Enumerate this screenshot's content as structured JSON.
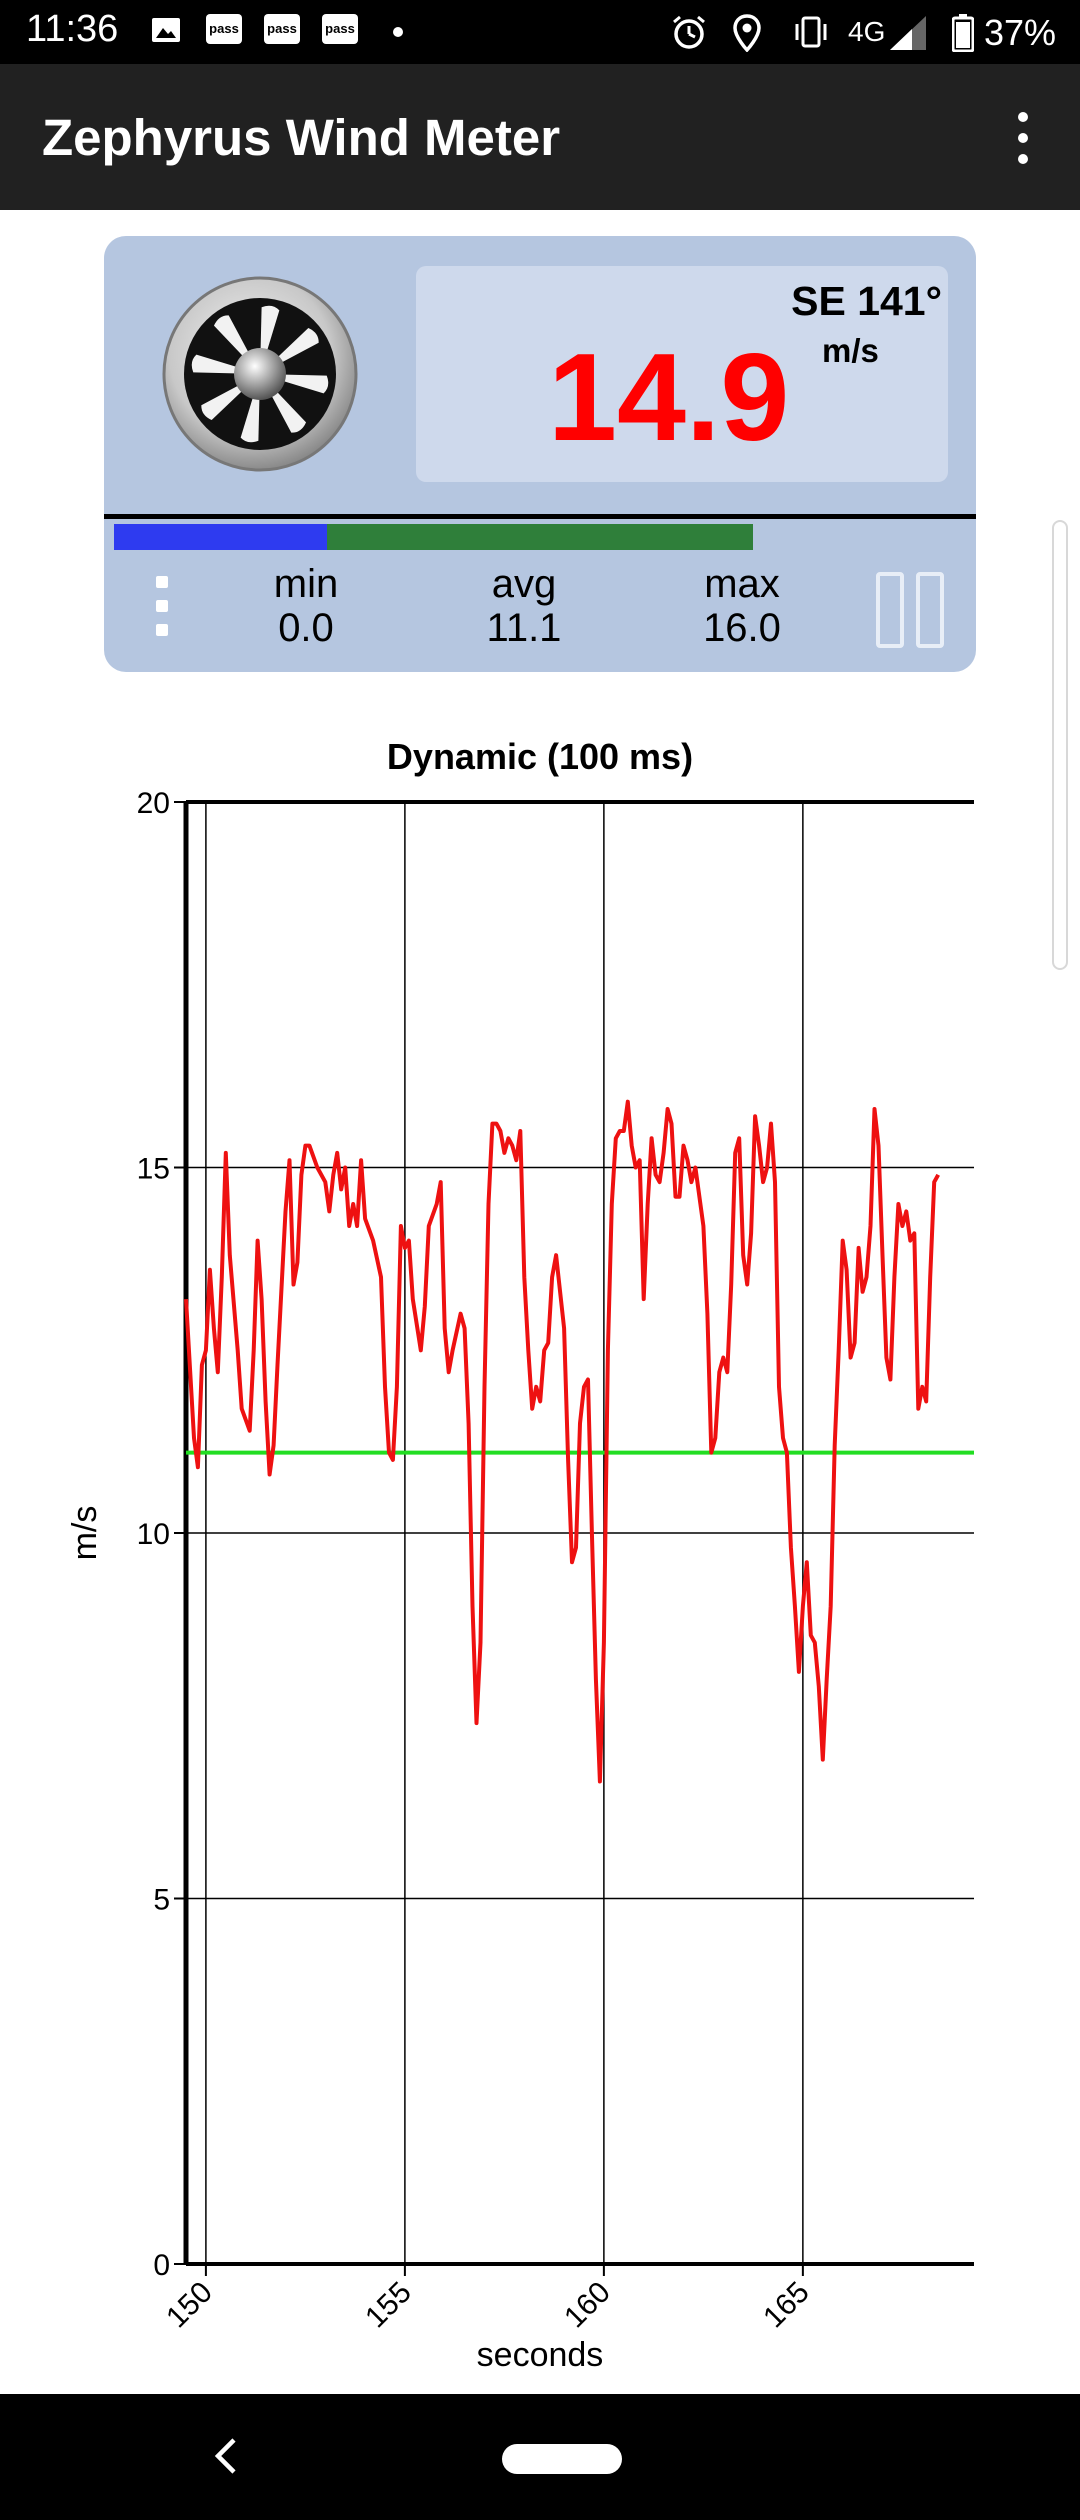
{
  "status_bar": {
    "time": "11:36",
    "notification_icons": [
      "gallery-icon",
      "pass-icon",
      "pass-icon",
      "pass-icon",
      "dot-icon"
    ],
    "pass_label": "pass",
    "system_icons": [
      "alarm-icon",
      "location-icon",
      "vibrate-icon",
      "signal-icon",
      "battery-icon"
    ],
    "network": "4G",
    "battery": "37%"
  },
  "app_bar": {
    "title": "Zephyrus Wind Meter",
    "menu_icon": "overflow-menu-icon"
  },
  "meter": {
    "direction": "SE 141°",
    "speed": "14.9",
    "unit": "m/s",
    "stats": [
      {
        "label": "min",
        "value": "0.0"
      },
      {
        "label": "avg",
        "value": "11.1"
      },
      {
        "label": "max",
        "value": "16.0"
      }
    ],
    "range_bar": {
      "blue_fraction": 0.25,
      "green_fraction": 0.5
    },
    "colors": {
      "speed": "#ff0000",
      "card": "#b5c6e0",
      "panel": "#ced9ec",
      "blue": "#2e3bf0",
      "green": "#2f7f3a"
    }
  },
  "chart_data": {
    "type": "line",
    "title": "Dynamic (100 ms)",
    "xlabel": "seconds",
    "ylabel": "m/s",
    "xlim": [
      149.5,
      169.3
    ],
    "ylim": [
      0,
      20
    ],
    "xticks": [
      150,
      155,
      160,
      165
    ],
    "yticks": [
      0,
      5,
      10,
      15,
      20
    ],
    "grid": true,
    "avg_line": {
      "value": 11.1,
      "color": "#22dd22"
    },
    "series": [
      {
        "color": "#ee1111",
        "points": [
          [
            149.5,
            13.2
          ],
          [
            149.7,
            11.3
          ],
          [
            149.8,
            10.9
          ],
          [
            149.9,
            12.3
          ],
          [
            150.0,
            12.5
          ],
          [
            150.1,
            13.6
          ],
          [
            150.2,
            12.8
          ],
          [
            150.3,
            12.2
          ],
          [
            150.4,
            13.5
          ],
          [
            150.5,
            15.2
          ],
          [
            150.6,
            13.8
          ],
          [
            150.8,
            12.5
          ],
          [
            150.9,
            11.7
          ],
          [
            151.1,
            11.4
          ],
          [
            151.2,
            12.5
          ],
          [
            151.3,
            14.0
          ],
          [
            151.4,
            13.2
          ],
          [
            151.5,
            11.8
          ],
          [
            151.6,
            10.8
          ],
          [
            151.7,
            11.2
          ],
          [
            151.8,
            12.3
          ],
          [
            152.0,
            14.4
          ],
          [
            152.1,
            15.1
          ],
          [
            152.2,
            13.4
          ],
          [
            152.3,
            13.7
          ],
          [
            152.4,
            14.9
          ],
          [
            152.5,
            15.3
          ],
          [
            152.6,
            15.3
          ],
          [
            152.8,
            15.0
          ],
          [
            153.0,
            14.8
          ],
          [
            153.1,
            14.4
          ],
          [
            153.2,
            14.9
          ],
          [
            153.3,
            15.2
          ],
          [
            153.4,
            14.7
          ],
          [
            153.5,
            15.0
          ],
          [
            153.6,
            14.2
          ],
          [
            153.7,
            14.5
          ],
          [
            153.8,
            14.2
          ],
          [
            153.9,
            15.1
          ],
          [
            154.0,
            14.3
          ],
          [
            154.2,
            14.0
          ],
          [
            154.4,
            13.5
          ],
          [
            154.5,
            12.0
          ],
          [
            154.6,
            11.1
          ],
          [
            154.7,
            11.0
          ],
          [
            154.8,
            12.0
          ],
          [
            154.9,
            14.2
          ],
          [
            155.0,
            13.9
          ],
          [
            155.1,
            14.0
          ],
          [
            155.2,
            13.2
          ],
          [
            155.4,
            12.5
          ],
          [
            155.5,
            13.1
          ],
          [
            155.6,
            14.2
          ],
          [
            155.8,
            14.5
          ],
          [
            155.9,
            14.8
          ],
          [
            156.0,
            12.8
          ],
          [
            156.1,
            12.2
          ],
          [
            156.2,
            12.5
          ],
          [
            156.4,
            13.0
          ],
          [
            156.5,
            12.8
          ],
          [
            156.6,
            11.5
          ],
          [
            156.7,
            9.0
          ],
          [
            156.8,
            7.4
          ],
          [
            156.9,
            8.5
          ],
          [
            157.0,
            12.0
          ],
          [
            157.1,
            14.5
          ],
          [
            157.2,
            15.6
          ],
          [
            157.3,
            15.6
          ],
          [
            157.4,
            15.5
          ],
          [
            157.5,
            15.2
          ],
          [
            157.6,
            15.4
          ],
          [
            157.7,
            15.3
          ],
          [
            157.8,
            15.1
          ],
          [
            157.9,
            15.5
          ],
          [
            158.0,
            13.5
          ],
          [
            158.1,
            12.5
          ],
          [
            158.2,
            11.7
          ],
          [
            158.3,
            12.0
          ],
          [
            158.4,
            11.8
          ],
          [
            158.5,
            12.5
          ],
          [
            158.6,
            12.6
          ],
          [
            158.7,
            13.5
          ],
          [
            158.8,
            13.8
          ],
          [
            158.9,
            13.3
          ],
          [
            159.0,
            12.8
          ],
          [
            159.1,
            11.0
          ],
          [
            159.2,
            9.6
          ],
          [
            159.3,
            9.8
          ],
          [
            159.4,
            11.5
          ],
          [
            159.5,
            12.0
          ],
          [
            159.6,
            12.1
          ],
          [
            159.7,
            10.0
          ],
          [
            159.8,
            8.0
          ],
          [
            159.9,
            6.6
          ],
          [
            160.0,
            8.5
          ],
          [
            160.1,
            12.5
          ],
          [
            160.2,
            14.5
          ],
          [
            160.3,
            15.4
          ],
          [
            160.4,
            15.5
          ],
          [
            160.5,
            15.5
          ],
          [
            160.6,
            15.9
          ],
          [
            160.7,
            15.3
          ],
          [
            160.8,
            15.0
          ],
          [
            160.9,
            15.1
          ],
          [
            161.0,
            13.2
          ],
          [
            161.1,
            14.5
          ],
          [
            161.2,
            15.4
          ],
          [
            161.3,
            14.9
          ],
          [
            161.4,
            14.8
          ],
          [
            161.5,
            15.2
          ],
          [
            161.6,
            15.8
          ],
          [
            161.7,
            15.6
          ],
          [
            161.8,
            14.6
          ],
          [
            161.9,
            14.6
          ],
          [
            162.0,
            15.3
          ],
          [
            162.1,
            15.1
          ],
          [
            162.2,
            14.8
          ],
          [
            162.3,
            15.0
          ],
          [
            162.5,
            14.2
          ],
          [
            162.6,
            13.0
          ],
          [
            162.7,
            11.1
          ],
          [
            162.8,
            11.3
          ],
          [
            162.9,
            12.2
          ],
          [
            163.0,
            12.4
          ],
          [
            163.1,
            12.2
          ],
          [
            163.2,
            13.4
          ],
          [
            163.3,
            15.2
          ],
          [
            163.4,
            15.4
          ],
          [
            163.5,
            13.8
          ],
          [
            163.6,
            13.4
          ],
          [
            163.7,
            14.1
          ],
          [
            163.8,
            15.7
          ],
          [
            163.9,
            15.3
          ],
          [
            164.0,
            14.8
          ],
          [
            164.1,
            15.0
          ],
          [
            164.2,
            15.6
          ],
          [
            164.3,
            14.8
          ],
          [
            164.4,
            12.0
          ],
          [
            164.5,
            11.3
          ],
          [
            164.6,
            11.1
          ],
          [
            164.7,
            9.8
          ],
          [
            164.8,
            9.0
          ],
          [
            164.9,
            8.1
          ],
          [
            165.0,
            9.0
          ],
          [
            165.1,
            9.6
          ],
          [
            165.2,
            8.6
          ],
          [
            165.3,
            8.5
          ],
          [
            165.4,
            7.9
          ],
          [
            165.5,
            6.9
          ],
          [
            165.6,
            8.0
          ],
          [
            165.7,
            9.0
          ],
          [
            165.8,
            11.2
          ],
          [
            165.9,
            12.5
          ],
          [
            166.0,
            14.0
          ],
          [
            166.1,
            13.6
          ],
          [
            166.2,
            12.4
          ],
          [
            166.3,
            12.6
          ],
          [
            166.4,
            13.9
          ],
          [
            166.5,
            13.3
          ],
          [
            166.6,
            13.5
          ],
          [
            166.7,
            14.2
          ],
          [
            166.8,
            15.8
          ],
          [
            166.9,
            15.3
          ],
          [
            167.0,
            13.8
          ],
          [
            167.1,
            12.4
          ],
          [
            167.2,
            12.1
          ],
          [
            167.3,
            13.5
          ],
          [
            167.4,
            14.5
          ],
          [
            167.5,
            14.2
          ],
          [
            167.6,
            14.4
          ],
          [
            167.7,
            14.0
          ],
          [
            167.8,
            14.1
          ],
          [
            167.9,
            11.7
          ],
          [
            168.0,
            12.0
          ],
          [
            168.1,
            11.8
          ],
          [
            168.2,
            13.5
          ],
          [
            168.3,
            14.8
          ],
          [
            168.4,
            14.9
          ]
        ]
      }
    ]
  },
  "nav_bar": {
    "back_icon": "back-chevron-icon",
    "home_icon": "home-pill-icon"
  }
}
